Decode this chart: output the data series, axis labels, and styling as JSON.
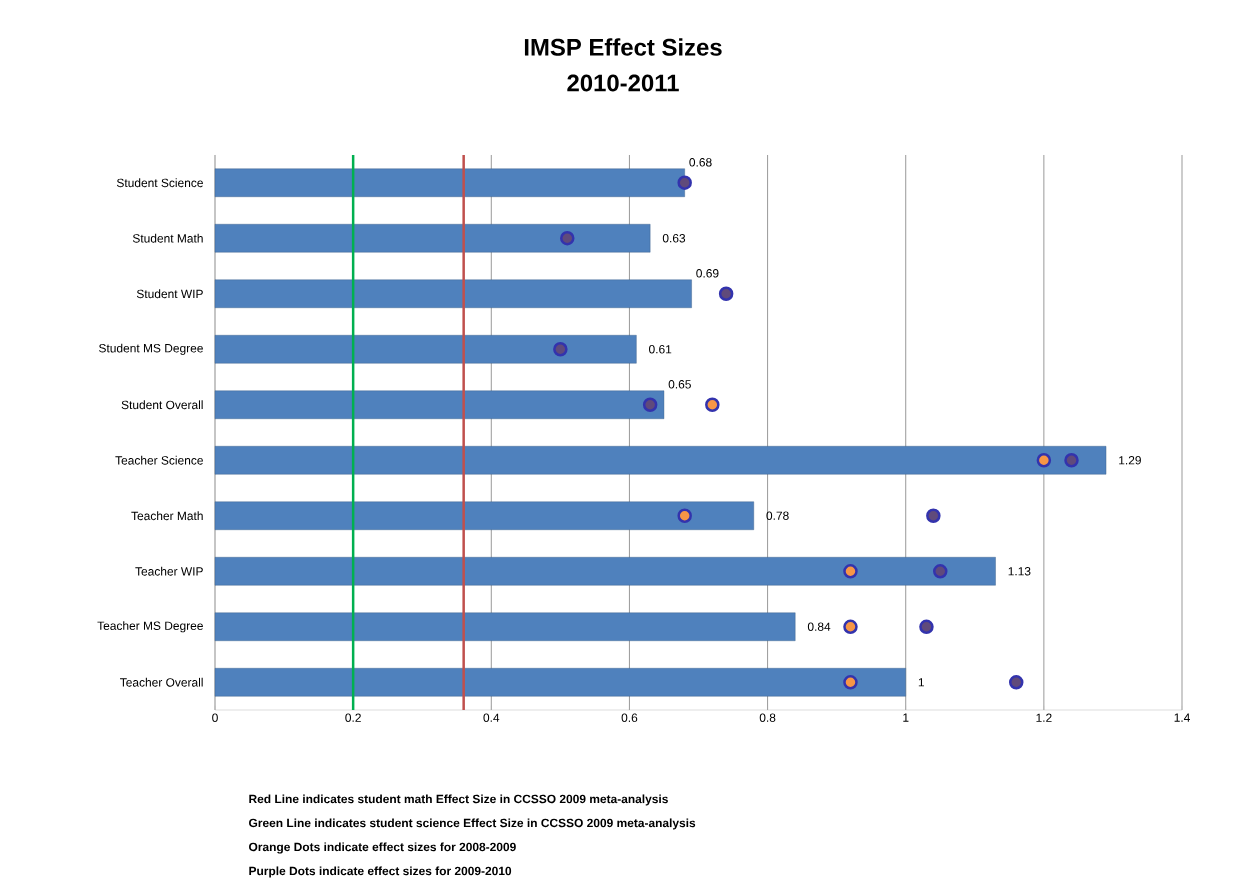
{
  "chart_data": {
    "type": "bar",
    "orientation": "horizontal",
    "title": "IMSP Effect Sizes",
    "subtitle": "2010-2011",
    "categories": [
      "Student Science",
      "Student Math",
      "Student WIP",
      "Student MS Degree",
      "Student Overall",
      "Teacher Science",
      "Teacher Math",
      "Teacher WIP",
      "Teacher MS Degree",
      "Teacher Overall"
    ],
    "series": [
      {
        "color": "#4f81bd",
        "values": [
          0.68,
          0.63,
          0.69,
          0.61,
          0.65,
          1.29,
          0.78,
          1.13,
          0.84,
          1
        ],
        "value_labels": [
          "0.68",
          "0.63",
          "0.69",
          "0.61",
          "0.65",
          "1.29",
          "0.78",
          "1.13",
          "0.84",
          "1"
        ]
      },
      {
        "type": "scatter",
        "color": "#f79646",
        "x": [
          "Student Science",
          "Student Math",
          "Student WIP",
          "Student MS Degree",
          "Student Overall",
          "Teacher Science",
          "Teacher Math",
          "Teacher WIP",
          "Teacher MS Degree",
          "Teacher Overall"
        ],
        "values": [
          null,
          null,
          null,
          null,
          0.72,
          1.2,
          0.68,
          0.92,
          0.92,
          0.92
        ]
      },
      {
        "type": "scatter",
        "color": "#604a7b",
        "x": [
          "Student Science",
          "Student Math",
          "Student WIP",
          "Student MS Degree",
          "Student Overall",
          "Teacher Science",
          "Teacher Math",
          "Teacher WIP",
          "Teacher MS Degree",
          "Teacher Overall"
        ],
        "values": [
          0.68,
          0.51,
          0.74,
          0.5,
          0.63,
          1.24,
          1.04,
          1.05,
          1.03,
          1.16
        ]
      }
    ],
    "marker": "circle",
    "grid": "x",
    "xlim": [
      0,
      1.4
    ],
    "xticks": [
      0,
      0.2,
      0.4,
      0.6,
      0.8,
      1,
      1.2,
      1.4
    ],
    "ref_lines": [
      {
        "axis": "x",
        "value": 0.36,
        "color": "#c0504d"
      },
      {
        "axis": "x",
        "value": 0.2,
        "color": "#00b050"
      }
    ],
    "annotations": [
      "Red Line indicates student math Effect Size in CCSSO 2009 meta-analysis",
      "Green Line indicates student science Effect Size in CCSSO 2009 meta-analysis",
      "Orange Dots indicate effect sizes for 2008-2009",
      "Purple Dots indicate effect sizes for 2009-2010"
    ]
  }
}
